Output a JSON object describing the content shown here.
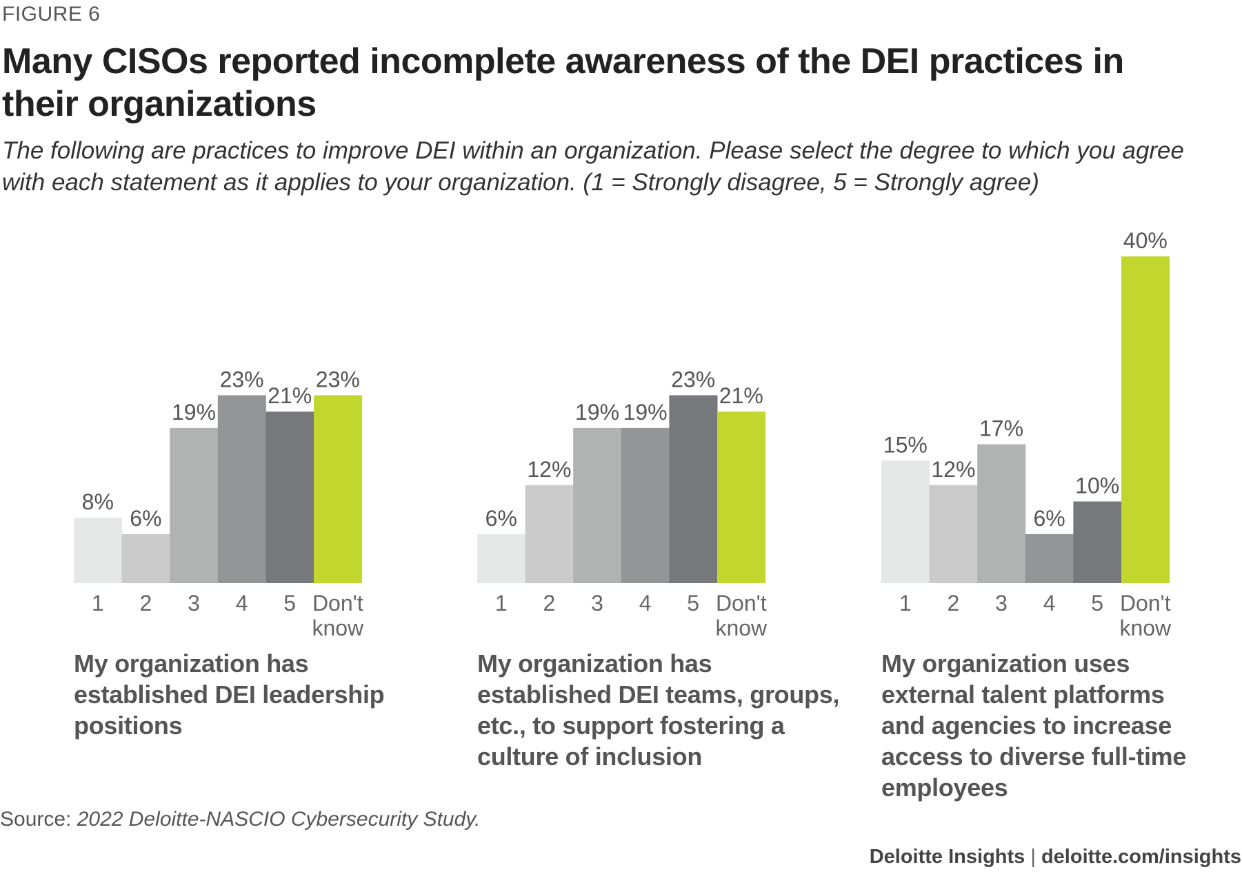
{
  "figure_label": "FIGURE 6",
  "title": "Many CISOs reported incomplete awareness of the DEI practices in their organizations",
  "subtitle": "The following are practices to improve DEI within an organization. Please select the degree to which you agree with each statement as it applies to your organization. (1 = Strongly disagree, 5 = Strongly agree)",
  "source": {
    "label": "Source:",
    "text": "2022 Deloitte-NASCIO Cybersecurity Study."
  },
  "footer": {
    "brand": "Deloitte Insights",
    "separator": "|",
    "url": "deloitte.com/insights"
  },
  "colors": {
    "1": "#e6e7e7",
    "2": "#cbcbcb",
    "3": "#b1b3b3",
    "4": "#949596",
    "5": "#77787b",
    "dont_know": "#c2d72e"
  },
  "chart_data": [
    {
      "type": "bar",
      "categories": [
        "1",
        "2",
        "3",
        "4",
        "5",
        "Don't know"
      ],
      "values": [
        8,
        6,
        19,
        23,
        21,
        23
      ],
      "value_labels": [
        "8%",
        "6%",
        "19%",
        "23%",
        "21%",
        "23%"
      ],
      "caption": "My organization has established DEI leadership positions",
      "unit": "%"
    },
    {
      "type": "bar",
      "categories": [
        "1",
        "2",
        "3",
        "4",
        "5",
        "Don't know"
      ],
      "values": [
        6,
        12,
        19,
        19,
        23,
        21
      ],
      "value_labels": [
        "6%",
        "12%",
        "19%",
        "19%",
        "23%",
        "21%"
      ],
      "caption": "My organization has established DEI teams, groups, etc., to support fostering a culture of inclusion",
      "unit": "%"
    },
    {
      "type": "bar",
      "categories": [
        "1",
        "2",
        "3",
        "4",
        "5",
        "Don't know"
      ],
      "values": [
        15,
        12,
        17,
        6,
        10,
        40
      ],
      "value_labels": [
        "15%",
        "12%",
        "17%",
        "6%",
        "10%",
        "40%"
      ],
      "caption": "My organization uses external talent platforms and agencies to increase access to diverse full-time employees",
      "unit": "%"
    }
  ]
}
